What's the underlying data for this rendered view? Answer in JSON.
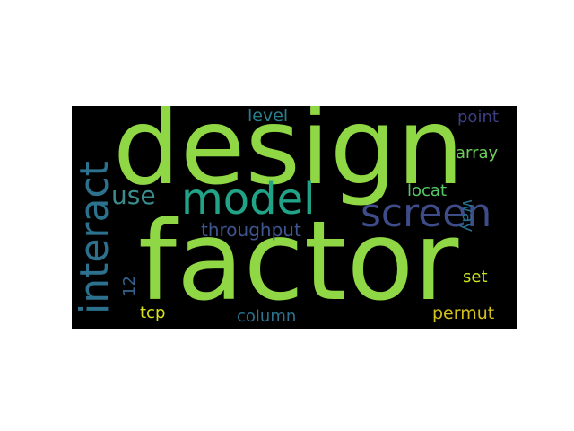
{
  "background_color": "#000000",
  "words": [
    {
      "id": "design",
      "text": "design",
      "color": "#8fd744"
    },
    {
      "id": "factor",
      "text": "factor",
      "color": "#8fd744"
    },
    {
      "id": "model",
      "text": "model",
      "color": "#20a386"
    },
    {
      "id": "screen",
      "text": "screen",
      "color": "#3e4c8a"
    },
    {
      "id": "interact",
      "text": "interact",
      "color": "#2c728e"
    },
    {
      "id": "use",
      "text": "use",
      "color": "#3b8c8c"
    },
    {
      "id": "throughput",
      "text": "throughput",
      "color": "#3f5590"
    },
    {
      "id": "level",
      "text": "level",
      "color": "#2a7f8e"
    },
    {
      "id": "point",
      "text": "point",
      "color": "#3b3f80"
    },
    {
      "id": "array",
      "text": "array",
      "color": "#6ccd5a"
    },
    {
      "id": "locat",
      "text": "locat",
      "color": "#56c667"
    },
    {
      "id": "way",
      "text": "way",
      "color": "#2a6f8e"
    },
    {
      "id": "set",
      "text": "set",
      "color": "#c8e020"
    },
    {
      "id": "12",
      "text": "12",
      "color": "#33638d"
    },
    {
      "id": "tcp",
      "text": "tcp",
      "color": "#d8e219"
    },
    {
      "id": "column",
      "text": "column",
      "color": "#2c728e"
    },
    {
      "id": "permut",
      "text": "permut",
      "color": "#d2c11a"
    }
  ]
}
